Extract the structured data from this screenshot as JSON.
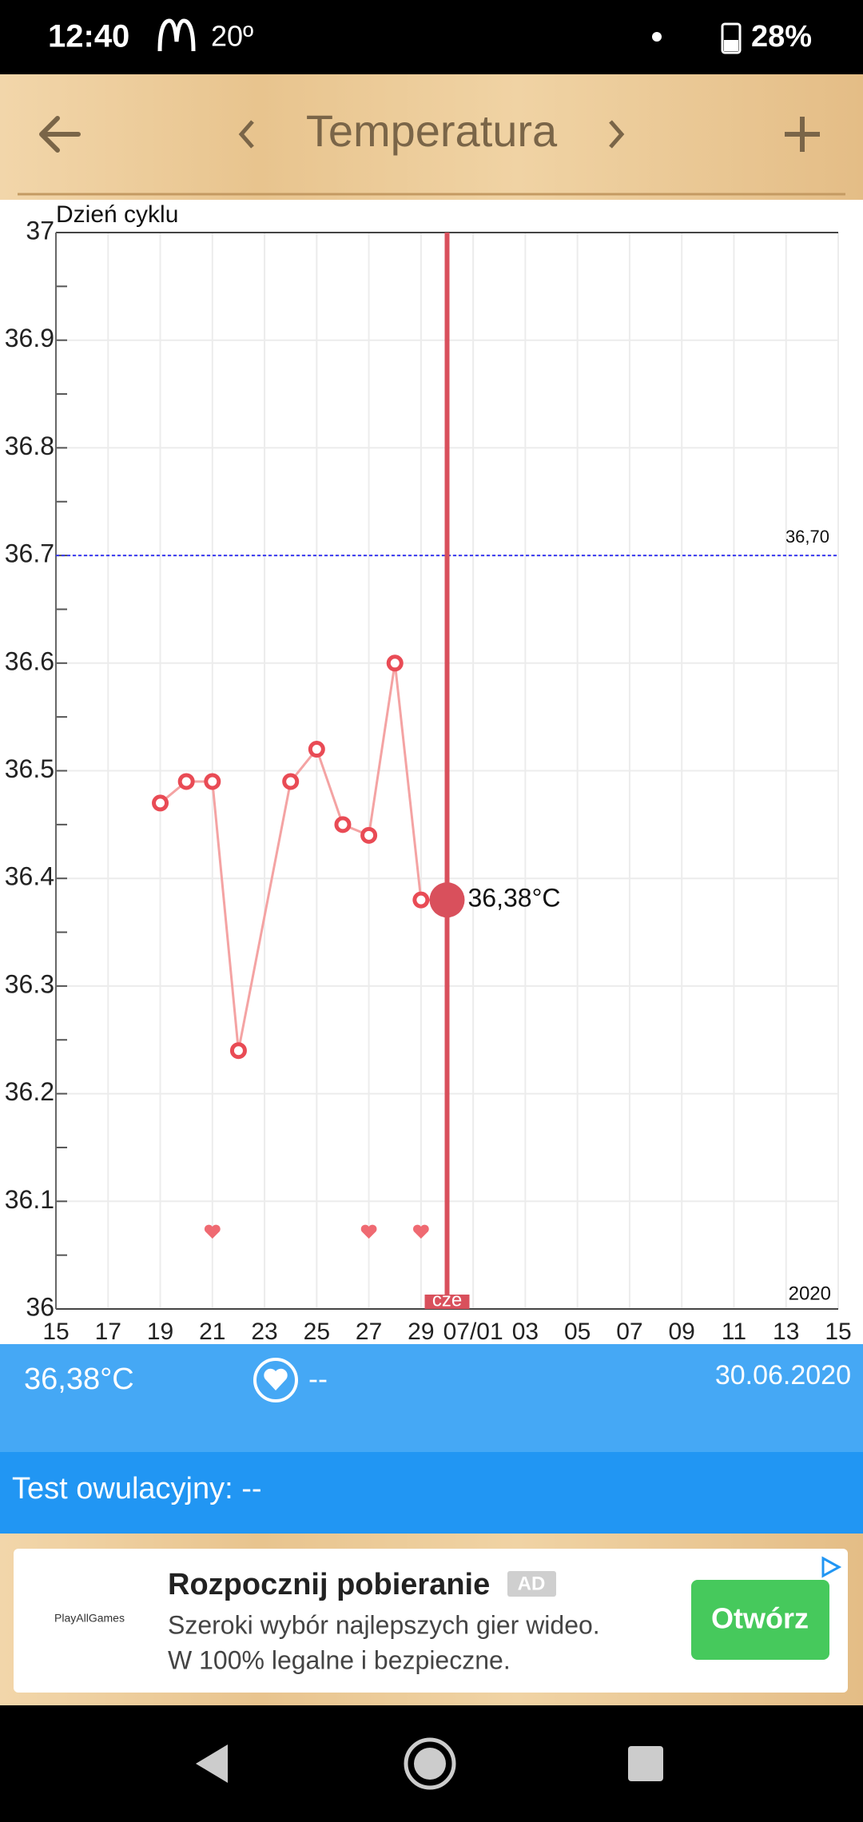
{
  "status_bar": {
    "time": "12:40",
    "temperature": "20º",
    "battery": "28%"
  },
  "app_bar": {
    "title": "Temperatura"
  },
  "chart_data": {
    "type": "line",
    "title": "Dzień cyklu",
    "x": [
      19,
      20,
      21,
      22,
      24,
      25,
      26,
      27,
      28,
      29,
      30
    ],
    "series": [
      {
        "color": "#f4a3a3",
        "marker_color": "#e94b55",
        "values": [
          36.47,
          36.49,
          36.49,
          36.24,
          36.49,
          36.52,
          36.45,
          36.44,
          36.6,
          36.38,
          36.38
        ]
      }
    ],
    "xlim": [
      15,
      45
    ],
    "xticks": [
      15,
      17,
      19,
      21,
      23,
      25,
      27,
      29,
      {
        "value": 31,
        "label": "07/01"
      },
      {
        "value": 33,
        "label": "03"
      },
      {
        "value": 35,
        "label": "05"
      },
      {
        "value": 37,
        "label": "07"
      },
      {
        "value": 39,
        "label": "09"
      },
      {
        "value": 41,
        "label": "11"
      },
      {
        "value": 43,
        "label": "13"
      },
      {
        "value": 45,
        "label": "15"
      }
    ],
    "ylim": [
      36,
      37
    ],
    "yticks": [
      36,
      36.1,
      36.2,
      36.3,
      36.4,
      36.5,
      36.6,
      36.7,
      36.8,
      36.9,
      37
    ],
    "grid": true,
    "reference_line": {
      "value": 36.7,
      "label": "36,70",
      "color": "#3a3af0"
    },
    "hearts": [
      21,
      27,
      29
    ],
    "cursor": {
      "x": 30,
      "value": 36.38,
      "value_label": "36,38°C",
      "label": "cze",
      "color": "#d9505c"
    },
    "year_label": "2020"
  },
  "info": {
    "temperature": "36,38°C",
    "intercourse": "--",
    "date": "30.06.2020",
    "ovulation_test": "Test owulacyjny: --"
  },
  "ad": {
    "logo": "PlayAllGames",
    "title": "Rozpocznij pobieranie",
    "badge": "AD",
    "line1": "Szeroki wybór najlepszych gier wideo.",
    "line2": "W 100% legalne i bezpieczne.",
    "button": "Otwórz"
  }
}
